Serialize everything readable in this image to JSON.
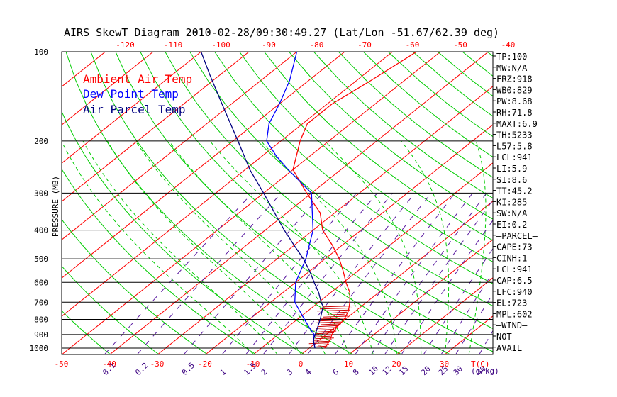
{
  "chart_data": {
    "type": "line",
    "title": "AIRS SkewT Diagram 2010-02-28/09:30:49.27 (Lat/Lon -51.67/62.39 deg)",
    "ylabel": "PRESSURE (MB)",
    "xlabel": "T(C)",
    "mixing_ratio_label": "(g/kg)",
    "y_scale": "log",
    "ylim": [
      1050,
      100
    ],
    "pressure_ticks": [
      100,
      200,
      300,
      400,
      500,
      600,
      700,
      800,
      900,
      1000
    ],
    "bottom_temp_ticks": [
      -50,
      -40,
      -30,
      -20,
      -10,
      0,
      10,
      20,
      30
    ],
    "top_temp_ticks": [
      -120,
      -110,
      -100,
      -90,
      -80,
      -70,
      -60,
      -50,
      -40
    ],
    "mixing_ratio_ticks": [
      "0.1",
      "0.2",
      "0.5",
      "1",
      "1.5",
      "2",
      "3",
      "4",
      "6",
      "8",
      "10",
      "12",
      "15",
      "20",
      "25",
      "30",
      "40"
    ],
    "legend": [
      {
        "label": "Ambient Air Temp",
        "color": "#ff0000"
      },
      {
        "label": "Dew Point Temp",
        "color": "#0000ff"
      },
      {
        "label": "Air Parcel Temp",
        "color": "#000080"
      }
    ],
    "series": [
      {
        "name": "Ambient Air Temp",
        "color": "#ff0000",
        "points": [
          [
            1000,
            3.2
          ],
          [
            950,
            2.5
          ],
          [
            900,
            1.2
          ],
          [
            850,
            0.3
          ],
          [
            800,
            -0.2
          ],
          [
            750,
            -1.5
          ],
          [
            700,
            -3.5
          ],
          [
            650,
            -6
          ],
          [
            600,
            -9.5
          ],
          [
            550,
            -13
          ],
          [
            500,
            -17
          ],
          [
            450,
            -22
          ],
          [
            400,
            -28
          ],
          [
            350,
            -33
          ],
          [
            300,
            -41
          ],
          [
            250,
            -50
          ],
          [
            200,
            -56
          ],
          [
            175,
            -59
          ],
          [
            150,
            -59
          ],
          [
            125,
            -57
          ],
          [
            100,
            -55
          ]
        ]
      },
      {
        "name": "Dew Point Temp",
        "color": "#0000ff",
        "points": [
          [
            1000,
            1.2
          ],
          [
            950,
            -0.8
          ],
          [
            900,
            -2.5
          ],
          [
            850,
            -5.5
          ],
          [
            800,
            -8.5
          ],
          [
            700,
            -15
          ],
          [
            600,
            -20
          ],
          [
            500,
            -24
          ],
          [
            400,
            -30
          ],
          [
            300,
            -40
          ],
          [
            250,
            -51
          ],
          [
            225,
            -57
          ],
          [
            200,
            -63
          ],
          [
            175,
            -67
          ],
          [
            150,
            -70
          ],
          [
            125,
            -74
          ],
          [
            100,
            -80
          ]
        ]
      },
      {
        "name": "Air Parcel Temp",
        "color": "#000080",
        "points": [
          [
            1000,
            1.2
          ],
          [
            940,
            -1.2
          ],
          [
            900,
            -2.3
          ],
          [
            850,
            -3.7
          ],
          [
            800,
            -5.2
          ],
          [
            723,
            -8
          ],
          [
            700,
            -9.5
          ],
          [
            650,
            -12.5
          ],
          [
            602,
            -16
          ],
          [
            550,
            -20
          ],
          [
            500,
            -24.5
          ],
          [
            450,
            -30
          ],
          [
            400,
            -36
          ],
          [
            350,
            -42.5
          ],
          [
            300,
            -50
          ],
          [
            250,
            -59
          ],
          [
            200,
            -69
          ],
          [
            150,
            -82
          ],
          [
            120,
            -92
          ],
          [
            100,
            -100
          ]
        ]
      }
    ],
    "indices": [
      "TP:100",
      "MW:N/A",
      "FRZ:918",
      "WB0:829",
      "PW:8.68",
      "RH:71.8",
      "MAXT:6.9",
      "TH:5233",
      "L57:5.8",
      "LCL:941",
      "LI:5.9",
      "SI:8.6",
      "TT:45.2",
      "KI:285",
      "SW:N/A",
      "EI:0.2",
      "–PARCEL–",
      "CAPE:73",
      "CINH:1",
      "LCL:941",
      "CAP:6.5",
      "LFC:940",
      "EL:723",
      "MPL:602",
      "–WIND–",
      "NOT",
      "AVAIL"
    ],
    "grid": true
  }
}
